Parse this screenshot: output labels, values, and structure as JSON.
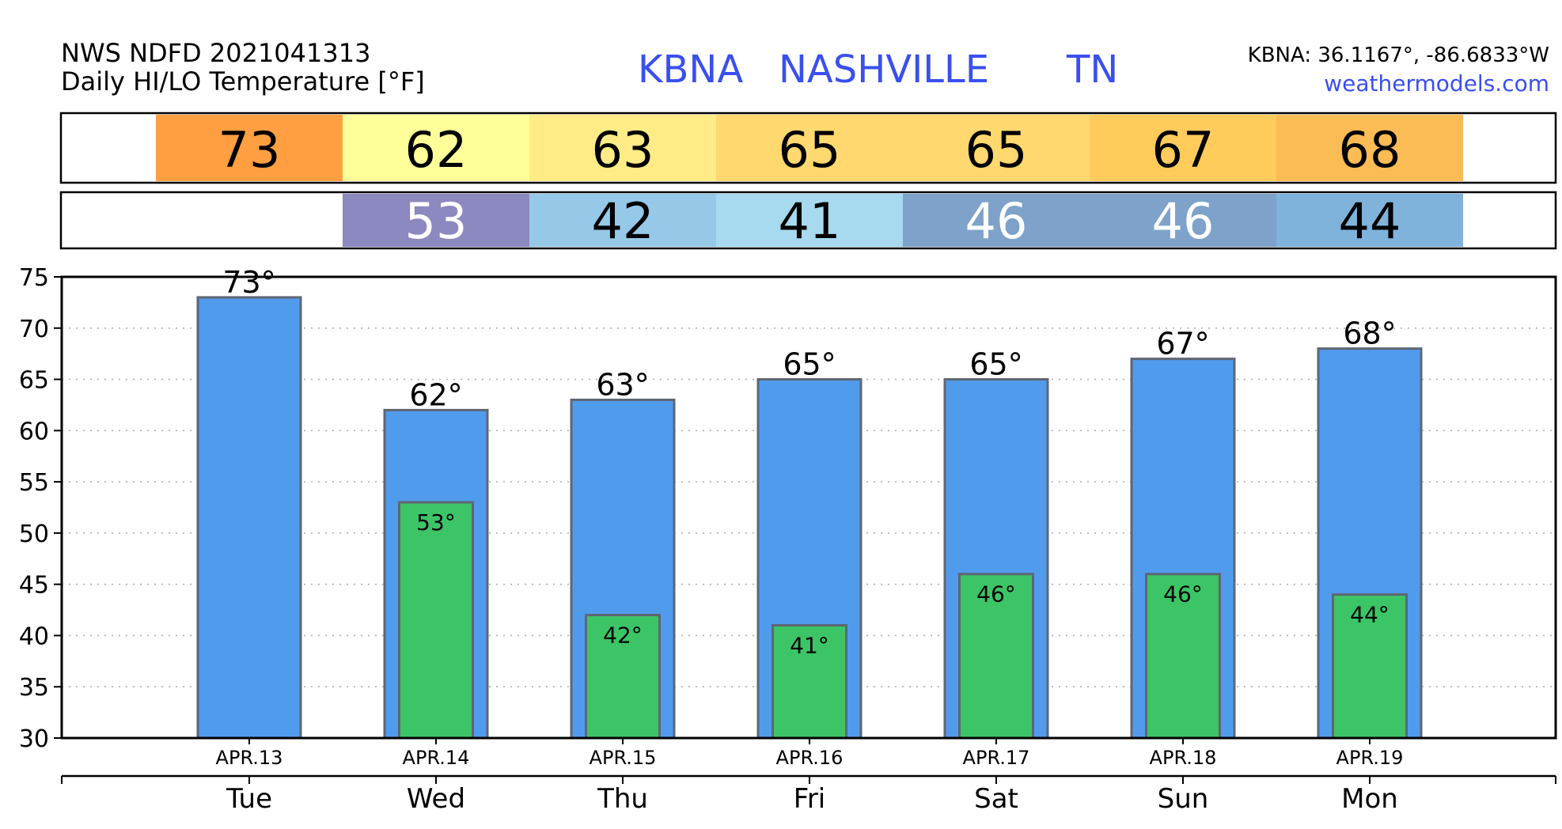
{
  "header": {
    "product_line1": "NWS NDFD 2021041313",
    "product_line2": "Daily HI/LO Temperature [°F]",
    "station_id": "KBNA",
    "station_name": "NASHVILLE",
    "station_state": "TN",
    "coords": "KBNA: 36.1167°, -86.6833°W",
    "site": "weathermodels.com"
  },
  "colors": {
    "title_blue": "#3a4ff0",
    "site_blue": "#3a4ff0",
    "hi_bar": "#519bed",
    "lo_bar": "#3cc566",
    "bar_stroke": "#5f6672",
    "hi_cells": [
      "#ff9f42",
      "#ffff99",
      "#ffec86",
      "#ffd86f",
      "#ffd86f",
      "#ffcc5c",
      "#fcbc55"
    ],
    "lo_cells": [
      "",
      "#8c88c0",
      "#96c9e8",
      "#a7daee",
      "#7ea2c9",
      "#7ea2c9",
      "#80b3db"
    ],
    "lo_text": [
      "",
      "#ffffff",
      "#000000",
      "#000000",
      "#ffffff",
      "#ffffff",
      "#000000"
    ]
  },
  "hi_row": [
    "73",
    "62",
    "63",
    "65",
    "65",
    "67",
    "68"
  ],
  "lo_row": [
    "",
    "53",
    "42",
    "41",
    "46",
    "46",
    "44"
  ],
  "chart_data": {
    "type": "bar",
    "categories": [
      "APR.13",
      "APR.14",
      "APR.15",
      "APR.16",
      "APR.17",
      "APR.18",
      "APR.19"
    ],
    "weekdays": [
      "Tue",
      "Wed",
      "Thu",
      "Fri",
      "Sat",
      "Sun",
      "Mon"
    ],
    "series": [
      {
        "values": [
          73,
          62,
          63,
          65,
          65,
          67,
          68
        ],
        "labels": [
          "73°",
          "62°",
          "63°",
          "65°",
          "65°",
          "67°",
          "68°"
        ]
      },
      {
        "values": [
          null,
          53,
          42,
          41,
          46,
          46,
          44
        ],
        "labels": [
          "",
          "53°",
          "42°",
          "41°",
          "46°",
          "46°",
          "44°"
        ]
      }
    ],
    "ylim": [
      30,
      75
    ],
    "yticks": [
      "30",
      "35",
      "40",
      "45",
      "50",
      "55",
      "60",
      "65",
      "70",
      "75"
    ],
    "grid": "horizontal dotted",
    "title": "",
    "xlabel": "",
    "ylabel": ""
  }
}
